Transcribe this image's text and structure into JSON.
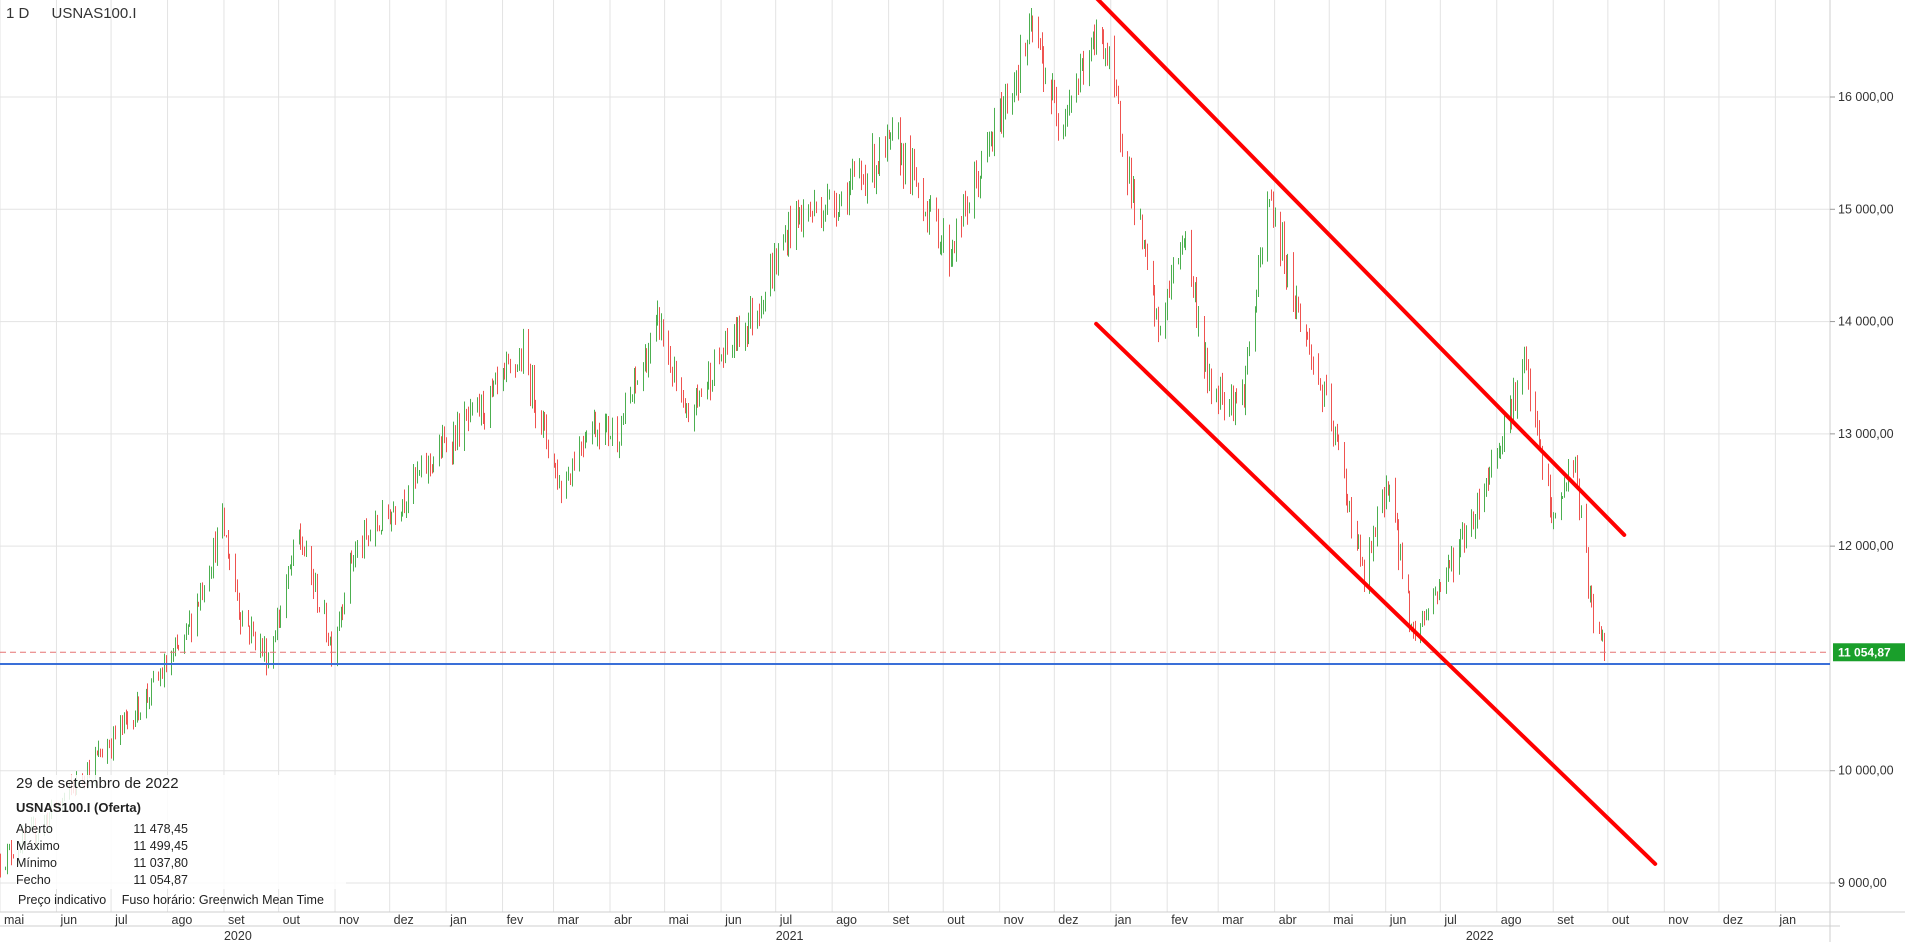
{
  "header": {
    "interval": "1 D",
    "symbol": "USNAS100.I"
  },
  "info_panel": {
    "date": "29 de setembro de 2022",
    "symbol_title": "USNAS100.I (Oferta)",
    "rows": [
      {
        "label": "Aberto",
        "value": "11 478,45"
      },
      {
        "label": "Máximo",
        "value": "11 499,45"
      },
      {
        "label": "Mínimo",
        "value": "11 037,80"
      },
      {
        "label": "Fecho",
        "value": "11 054,87"
      }
    ]
  },
  "footer": {
    "indicative": "Preço indicativo",
    "timezone": "Fuso horário: Greenwich Mean Time"
  },
  "colors": {
    "up": "#4caf50",
    "down": "#ef5350",
    "trendline": "#ff0000",
    "support": "#3a6fd8",
    "last_price_line": "#e57373",
    "badge": "#1a9f2b",
    "grid": "#e3e3e3",
    "axis_text": "#333333"
  },
  "chart_data": {
    "type": "ohlc",
    "title": "USNAS100.I",
    "ylim": [
      8900,
      16800
    ],
    "xlim": [
      "2020-05-01",
      "2023-01-31"
    ],
    "y_ticks": [
      {
        "value": 9000,
        "label": "9 000,00"
      },
      {
        "value": 10000,
        "label": "10 000,00"
      },
      {
        "value": 12000,
        "label": "12 000,00"
      },
      {
        "value": 13000,
        "label": "13 000,00"
      },
      {
        "value": 14000,
        "label": "14 000,00"
      },
      {
        "value": 15000,
        "label": "15 000,00"
      },
      {
        "value": 16000,
        "label": "16 000,00"
      }
    ],
    "x_ticks": [
      {
        "date": "2020-05-01",
        "label": "mai"
      },
      {
        "date": "2020-06-01",
        "label": "jun"
      },
      {
        "date": "2020-07-01",
        "label": "jul"
      },
      {
        "date": "2020-08-01",
        "label": "ago"
      },
      {
        "date": "2020-09-01",
        "label": "set"
      },
      {
        "date": "2020-10-01",
        "label": "out"
      },
      {
        "date": "2020-11-01",
        "label": "nov"
      },
      {
        "date": "2020-12-01",
        "label": "dez"
      },
      {
        "date": "2021-01-01",
        "label": "jan"
      },
      {
        "date": "2021-02-01",
        "label": "fev"
      },
      {
        "date": "2021-03-01",
        "label": "mar"
      },
      {
        "date": "2021-04-01",
        "label": "abr"
      },
      {
        "date": "2021-05-01",
        "label": "mai"
      },
      {
        "date": "2021-06-01",
        "label": "jun"
      },
      {
        "date": "2021-07-01",
        "label": "jul"
      },
      {
        "date": "2021-08-01",
        "label": "ago"
      },
      {
        "date": "2021-09-01",
        "label": "set"
      },
      {
        "date": "2021-10-01",
        "label": "out"
      },
      {
        "date": "2021-11-01",
        "label": "nov"
      },
      {
        "date": "2021-12-01",
        "label": "dez"
      },
      {
        "date": "2022-01-01",
        "label": "jan"
      },
      {
        "date": "2022-02-01",
        "label": "fev"
      },
      {
        "date": "2022-03-01",
        "label": "mar"
      },
      {
        "date": "2022-04-01",
        "label": "abr"
      },
      {
        "date": "2022-05-01",
        "label": "mai"
      },
      {
        "date": "2022-06-01",
        "label": "jun"
      },
      {
        "date": "2022-07-01",
        "label": "jul"
      },
      {
        "date": "2022-08-01",
        "label": "ago"
      },
      {
        "date": "2022-09-01",
        "label": "set"
      },
      {
        "date": "2022-10-01",
        "label": "out"
      },
      {
        "date": "2022-11-01",
        "label": "nov"
      },
      {
        "date": "2022-12-01",
        "label": "dez"
      },
      {
        "date": "2023-01-01",
        "label": "jan"
      }
    ],
    "year_labels": [
      {
        "date": "2020-09-01",
        "label": "2020"
      },
      {
        "date": "2021-07-01",
        "label": "2021"
      },
      {
        "date": "2022-07-15",
        "label": "2022"
      }
    ],
    "last_price": {
      "value": 11054.87,
      "label": "11 054,87"
    },
    "support_level": 10950,
    "close_path": [
      [
        "2020-05-01",
        9200
      ],
      [
        "2020-05-20",
        9450
      ],
      [
        "2020-06-10",
        9850
      ],
      [
        "2020-06-30",
        10250
      ],
      [
        "2020-07-20",
        10650
      ],
      [
        "2020-08-10",
        11150
      ],
      [
        "2020-08-31",
        12200
      ],
      [
        "2020-09-10",
        11400
      ],
      [
        "2020-09-25",
        11000
      ],
      [
        "2020-10-12",
        12100
      ],
      [
        "2020-10-30",
        11100
      ],
      [
        "2020-11-10",
        11900
      ],
      [
        "2020-12-01",
        12300
      ],
      [
        "2020-12-31",
        12900
      ],
      [
        "2021-01-25",
        13300
      ],
      [
        "2021-02-12",
        13700
      ],
      [
        "2021-03-05",
        12500
      ],
      [
        "2021-03-20",
        13100
      ],
      [
        "2021-04-05",
        13000
      ],
      [
        "2021-04-28",
        14000
      ],
      [
        "2021-05-12",
        13100
      ],
      [
        "2021-05-28",
        13600
      ],
      [
        "2021-06-20",
        14100
      ],
      [
        "2021-07-10",
        14900
      ],
      [
        "2021-08-05",
        15100
      ],
      [
        "2021-09-05",
        15600
      ],
      [
        "2021-10-04",
        14600
      ],
      [
        "2021-10-25",
        15500
      ],
      [
        "2021-11-19",
        16600
      ],
      [
        "2021-12-03",
        15800
      ],
      [
        "2021-12-27",
        16600
      ],
      [
        "2022-01-10",
        15400
      ],
      [
        "2022-01-27",
        13900
      ],
      [
        "2022-02-10",
        14800
      ],
      [
        "2022-02-24",
        13400
      ],
      [
        "2022-03-14",
        13300
      ],
      [
        "2022-03-29",
        15100
      ],
      [
        "2022-04-12",
        14200
      ],
      [
        "2022-05-05",
        12900
      ],
      [
        "2022-05-20",
        11700
      ],
      [
        "2022-06-02",
        12600
      ],
      [
        "2022-06-16",
        11200
      ],
      [
        "2022-07-05",
        11800
      ],
      [
        "2022-07-20",
        12300
      ],
      [
        "2022-08-16",
        13600
      ],
      [
        "2022-09-01",
        12200
      ],
      [
        "2022-09-12",
        12800
      ],
      [
        "2022-09-22",
        11400
      ],
      [
        "2022-09-29",
        11054.87
      ]
    ],
    "channel_lines": [
      {
        "start": [
          "2021-12-20",
          16950
        ],
        "end": [
          "2022-10-10",
          12100
        ]
      },
      {
        "start": [
          "2021-12-24",
          13980
        ],
        "end": [
          "2022-10-27",
          9170
        ]
      }
    ]
  }
}
